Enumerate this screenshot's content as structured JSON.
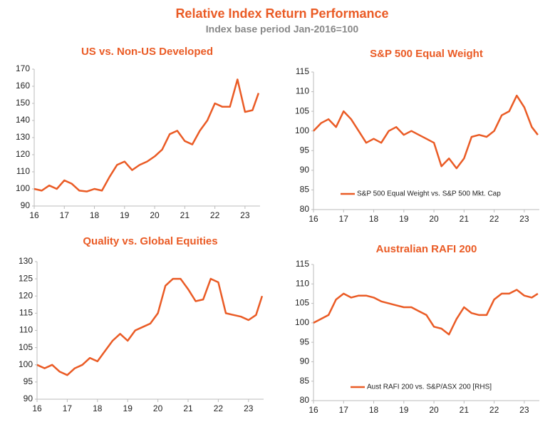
{
  "title": "Relative Index Return Performance",
  "subtitle": "Index base period Jan-2016=100",
  "chart_data": [
    {
      "type": "line",
      "title": "US vs. Non-US Developed",
      "x": [
        16,
        16.25,
        16.5,
        16.75,
        17,
        17.25,
        17.5,
        17.75,
        18,
        18.25,
        18.5,
        18.75,
        19,
        19.25,
        19.5,
        19.75,
        20,
        20.25,
        20.5,
        20.75,
        21,
        21.25,
        21.5,
        21.75,
        22,
        22.25,
        22.5,
        22.75,
        23,
        23.25,
        23.45
      ],
      "series": [
        {
          "color": "#ea5b25",
          "values": [
            100,
            99,
            102,
            100,
            105,
            103,
            99,
            98.5,
            100,
            99,
            107,
            114,
            116,
            111,
            114,
            116,
            119,
            123,
            132,
            134,
            128,
            126,
            134,
            140,
            150,
            148,
            148,
            164,
            145,
            146,
            156
          ]
        }
      ],
      "xlim": [
        16,
        23.5
      ],
      "xticks": [
        16,
        17,
        18,
        19,
        20,
        21,
        22,
        23
      ],
      "ylim": [
        90,
        170
      ],
      "yticks": [
        90,
        100,
        110,
        120,
        130,
        140,
        150,
        160,
        170
      ],
      "grid": false
    },
    {
      "type": "line",
      "title": "S&P 500 Equal Weight",
      "x": [
        16,
        16.25,
        16.5,
        16.75,
        17,
        17.25,
        17.5,
        17.75,
        18,
        18.25,
        18.5,
        18.75,
        19,
        19.25,
        19.5,
        19.75,
        20,
        20.25,
        20.5,
        20.75,
        21,
        21.25,
        21.5,
        21.75,
        22,
        22.25,
        22.5,
        22.75,
        23,
        23.25,
        23.45
      ],
      "series": [
        {
          "name": "S&P 500 Equal Weight vs. S&P 500 Mkt. Cap",
          "color": "#ea5b25",
          "values": [
            100,
            102,
            103,
            101,
            105,
            103,
            100,
            97,
            98,
            97,
            100,
            101,
            99,
            100,
            99,
            98,
            97,
            91,
            93,
            90.5,
            93,
            98.5,
            99,
            98.5,
            100,
            104,
            105,
            109,
            106,
            101,
            99
          ]
        }
      ],
      "xlim": [
        16,
        23.5
      ],
      "xticks": [
        16,
        17,
        18,
        19,
        20,
        21,
        22,
        23
      ],
      "ylim": [
        80,
        115
      ],
      "yticks": [
        80,
        85,
        90,
        95,
        100,
        105,
        110,
        115
      ],
      "grid": false,
      "legend": "lower center"
    },
    {
      "type": "line",
      "title": "Quality vs. Global Equities",
      "x": [
        16,
        16.25,
        16.5,
        16.75,
        17,
        17.25,
        17.5,
        17.75,
        18,
        18.25,
        18.5,
        18.75,
        19,
        19.25,
        19.5,
        19.75,
        20,
        20.25,
        20.5,
        20.75,
        21,
        21.25,
        21.5,
        21.75,
        22,
        22.25,
        22.5,
        22.75,
        23,
        23.25,
        23.45
      ],
      "series": [
        {
          "color": "#ea5b25",
          "values": [
            100,
            99,
            100,
            98,
            97,
            99,
            100,
            102,
            101,
            104,
            107,
            109,
            107,
            110,
            111,
            112,
            115,
            123,
            125,
            125,
            122,
            118.5,
            119,
            125,
            124,
            115,
            114.5,
            114,
            113,
            114.5,
            120
          ]
        }
      ],
      "xlim": [
        16,
        23.5
      ],
      "xticks": [
        16,
        17,
        18,
        19,
        20,
        21,
        22,
        23
      ],
      "ylim": [
        90,
        130
      ],
      "yticks": [
        90,
        95,
        100,
        105,
        110,
        115,
        120,
        125,
        130
      ],
      "grid": false
    },
    {
      "type": "line",
      "title": "Australian RAFI 200",
      "x": [
        16,
        16.25,
        16.5,
        16.75,
        17,
        17.25,
        17.5,
        17.75,
        18,
        18.25,
        18.5,
        18.75,
        19,
        19.25,
        19.5,
        19.75,
        20,
        20.25,
        20.5,
        20.75,
        21,
        21.25,
        21.5,
        21.75,
        22,
        22.25,
        22.5,
        22.75,
        23,
        23.25,
        23.45
      ],
      "series": [
        {
          "name": "Aust RAFI 200 vs. S&P/ASX 200 [RHS]",
          "color": "#ea5b25",
          "values": [
            100,
            101,
            102,
            106,
            107.5,
            106.5,
            107,
            107,
            106.5,
            105.5,
            105,
            104.5,
            104,
            104,
            103,
            102,
            99,
            98.5,
            97,
            101,
            104,
            102.5,
            102,
            102,
            106,
            107.5,
            107.5,
            108.5,
            107,
            106.5,
            107.5
          ]
        }
      ],
      "xlim": [
        16,
        23.5
      ],
      "xticks": [
        16,
        17,
        18,
        19,
        20,
        21,
        22,
        23
      ],
      "ylim": [
        80,
        115
      ],
      "yticks": [
        80,
        85,
        90,
        95,
        100,
        105,
        110,
        115
      ],
      "grid": false,
      "legend": "lower center"
    }
  ]
}
